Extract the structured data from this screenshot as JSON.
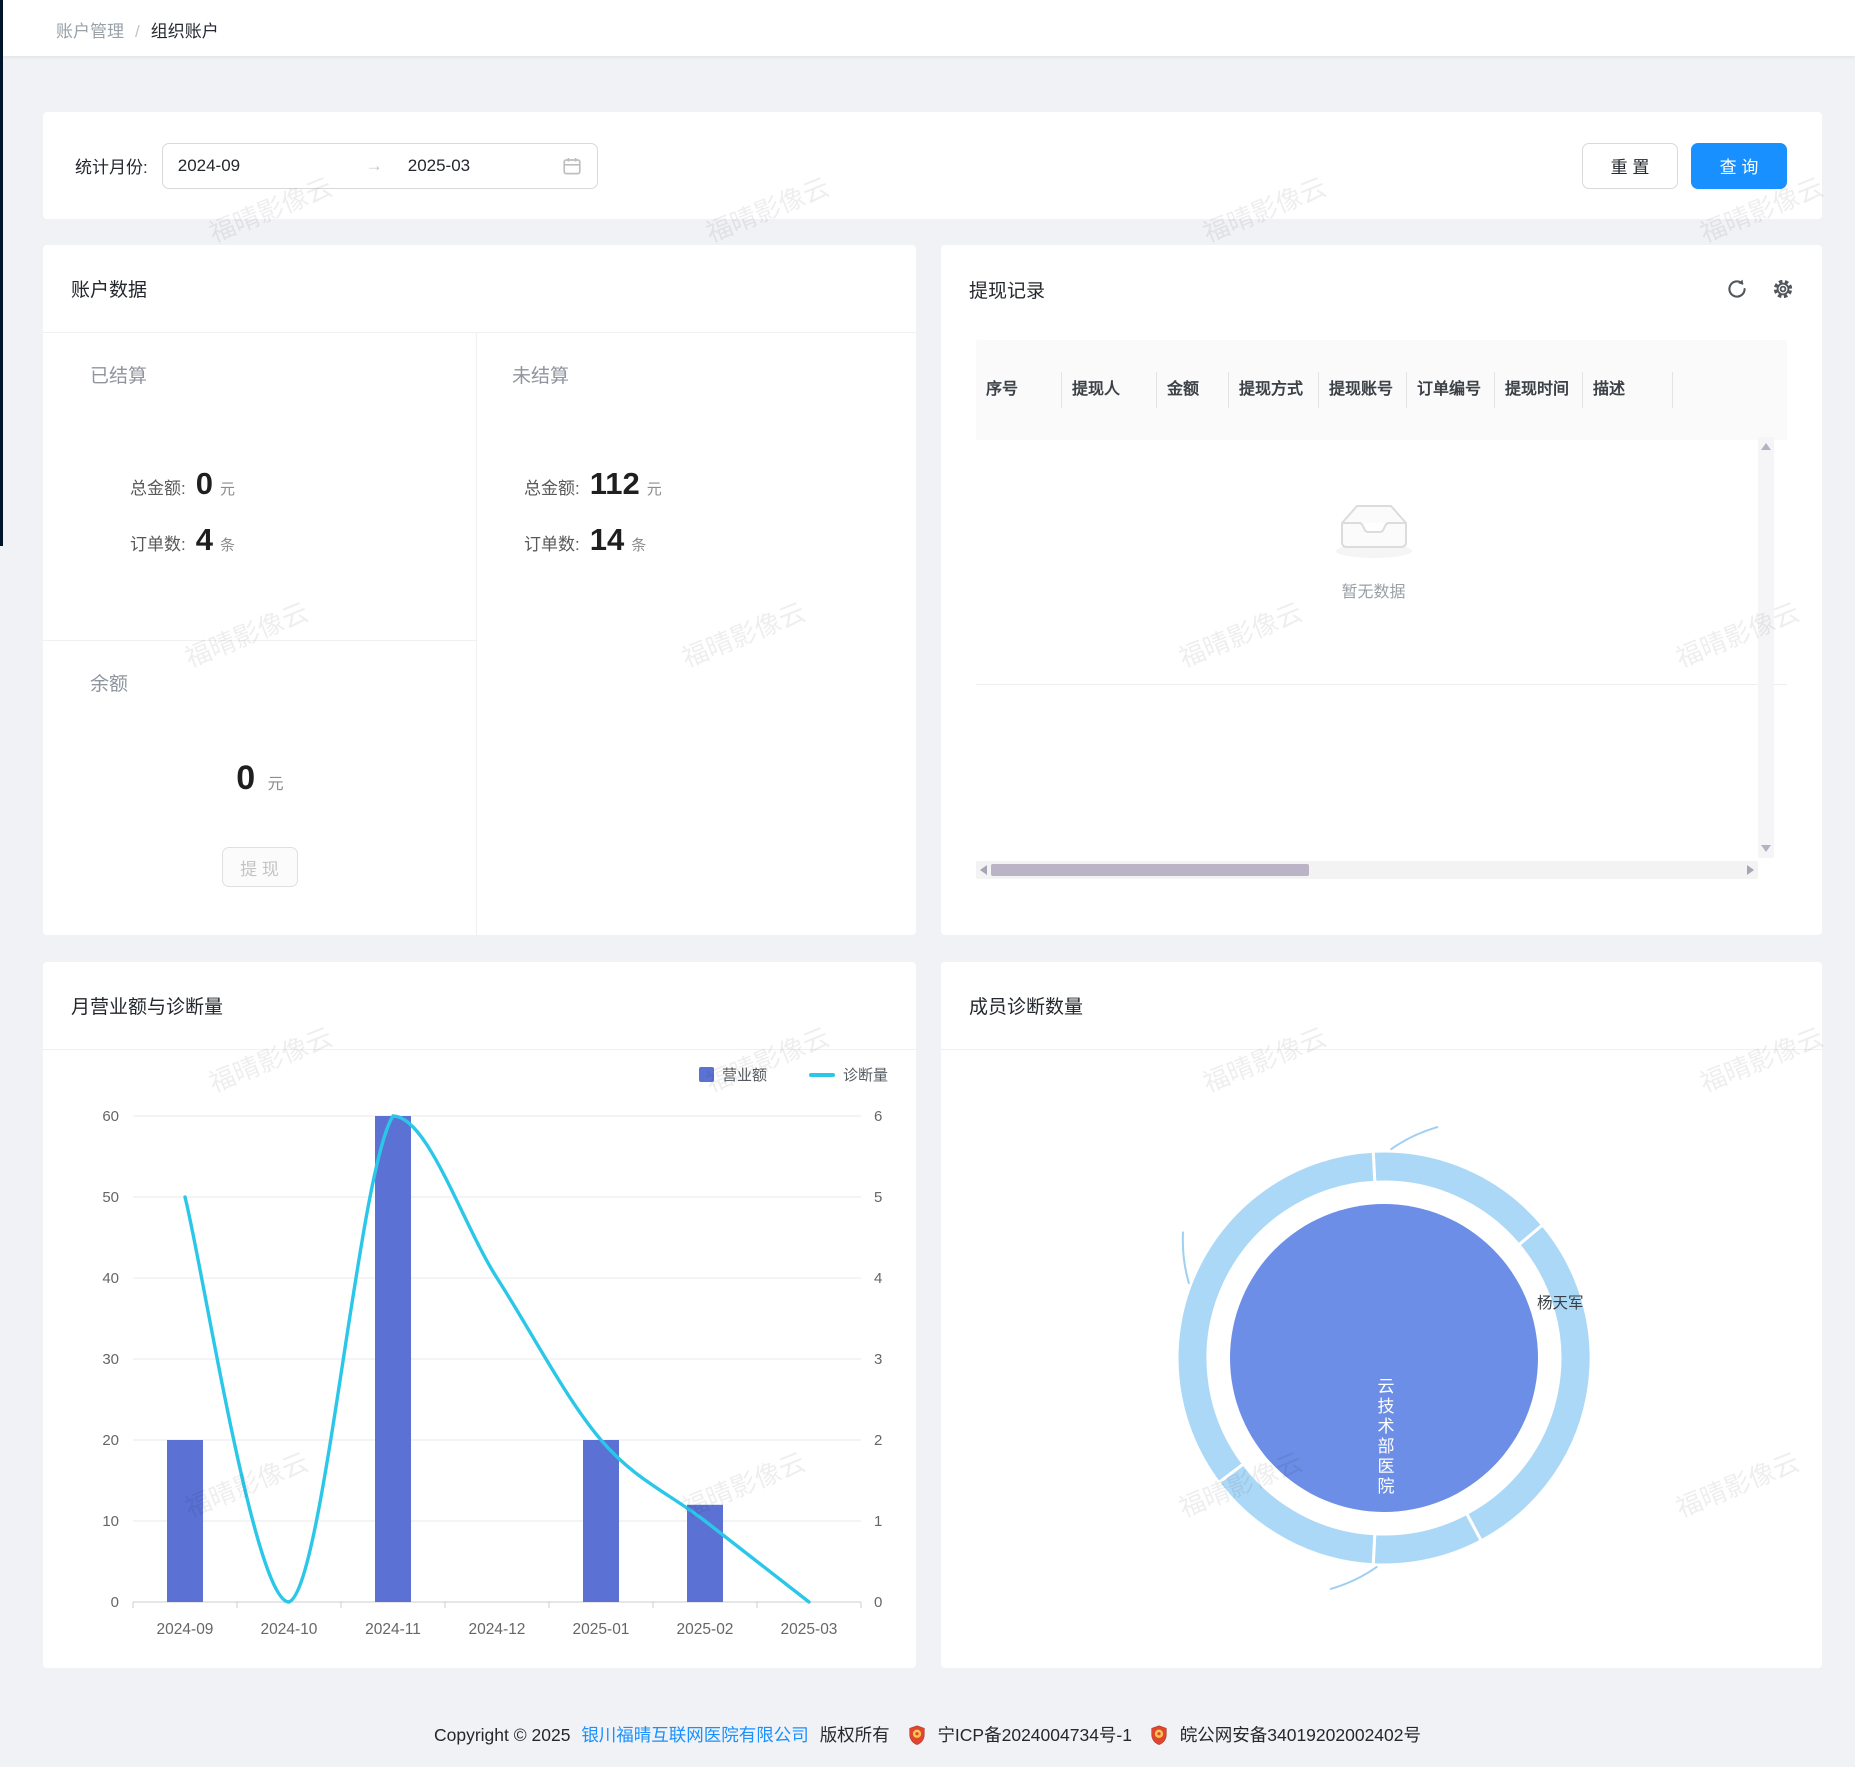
{
  "watermark": {
    "text": "福晴影像云"
  },
  "breadcrumb": {
    "parent": "账户管理",
    "separator": "/",
    "current": "组织账户"
  },
  "filter": {
    "label": "统计月份:",
    "range_start": "2024-09",
    "range_end": "2025-03",
    "arrow_glyph": "→",
    "reset_label": "重 置",
    "query_label": "查 询"
  },
  "account_panel": {
    "title": "账户数据",
    "settled": {
      "label": "已结算",
      "amount_label": "总金额:",
      "amount": "0",
      "amount_unit": "元",
      "orders_label": "订单数:",
      "orders": "4",
      "orders_unit": "条"
    },
    "unsettled": {
      "label": "未结算",
      "amount_label": "总金额:",
      "amount": "112",
      "amount_unit": "元",
      "orders_label": "订单数:",
      "orders": "14",
      "orders_unit": "条"
    },
    "balance": {
      "label": "余额",
      "amount": "0",
      "unit": "元",
      "withdraw_label": "提 现"
    }
  },
  "withdraw_panel": {
    "title": "提现记录",
    "columns": [
      "序号",
      "提现人",
      "金额",
      "提现方式",
      "提现账号",
      "订单编号",
      "提现时间",
      "描述"
    ],
    "empty_text": "暂无数据",
    "rows": []
  },
  "revenue_panel": {
    "title": "月营业额与诊断量"
  },
  "members_panel": {
    "title": "成员诊断数量"
  },
  "chart_data": [
    {
      "type": "bar",
      "subtype": "bar+line dual axis",
      "title": "月营业额与诊断量",
      "categories": [
        "2024-09",
        "2024-10",
        "2024-11",
        "2024-12",
        "2025-01",
        "2025-02",
        "2025-03"
      ],
      "series": [
        {
          "name": "营业额",
          "type": "bar",
          "axis": "left",
          "color": "#5B72D4",
          "values": [
            20,
            0,
            60,
            0,
            20,
            12,
            0
          ]
        },
        {
          "name": "诊断量",
          "type": "line",
          "axis": "right",
          "color": "#2BC7E9",
          "values": [
            5,
            0,
            6,
            4,
            2,
            1,
            0
          ]
        }
      ],
      "left_axis": {
        "min": 0,
        "max": 60,
        "step": 10
      },
      "right_axis": {
        "min": 0,
        "max": 6,
        "step": 1
      },
      "grid": true,
      "legend_position": "top-right"
    },
    {
      "type": "pie",
      "subtype": "sunburst",
      "title": "成员诊断数量",
      "inner": {
        "label": "云技术部医院",
        "color": "#6C8EE6"
      },
      "ring": {
        "color": "#ACD8F7",
        "segment_boundaries_deg": [
          93,
          40,
          -62,
          -93,
          -143
        ],
        "labeled_segment": "杨天军",
        "label_color": "#3a3f45"
      }
    }
  ],
  "footer": {
    "copyright": "Copyright © 2025",
    "company": "银川福晴互联网医院有限公司",
    "rights": "版权所有",
    "icp": "宁ICP备2024004734号-1",
    "police": "皖公网安备34019202002402号"
  }
}
